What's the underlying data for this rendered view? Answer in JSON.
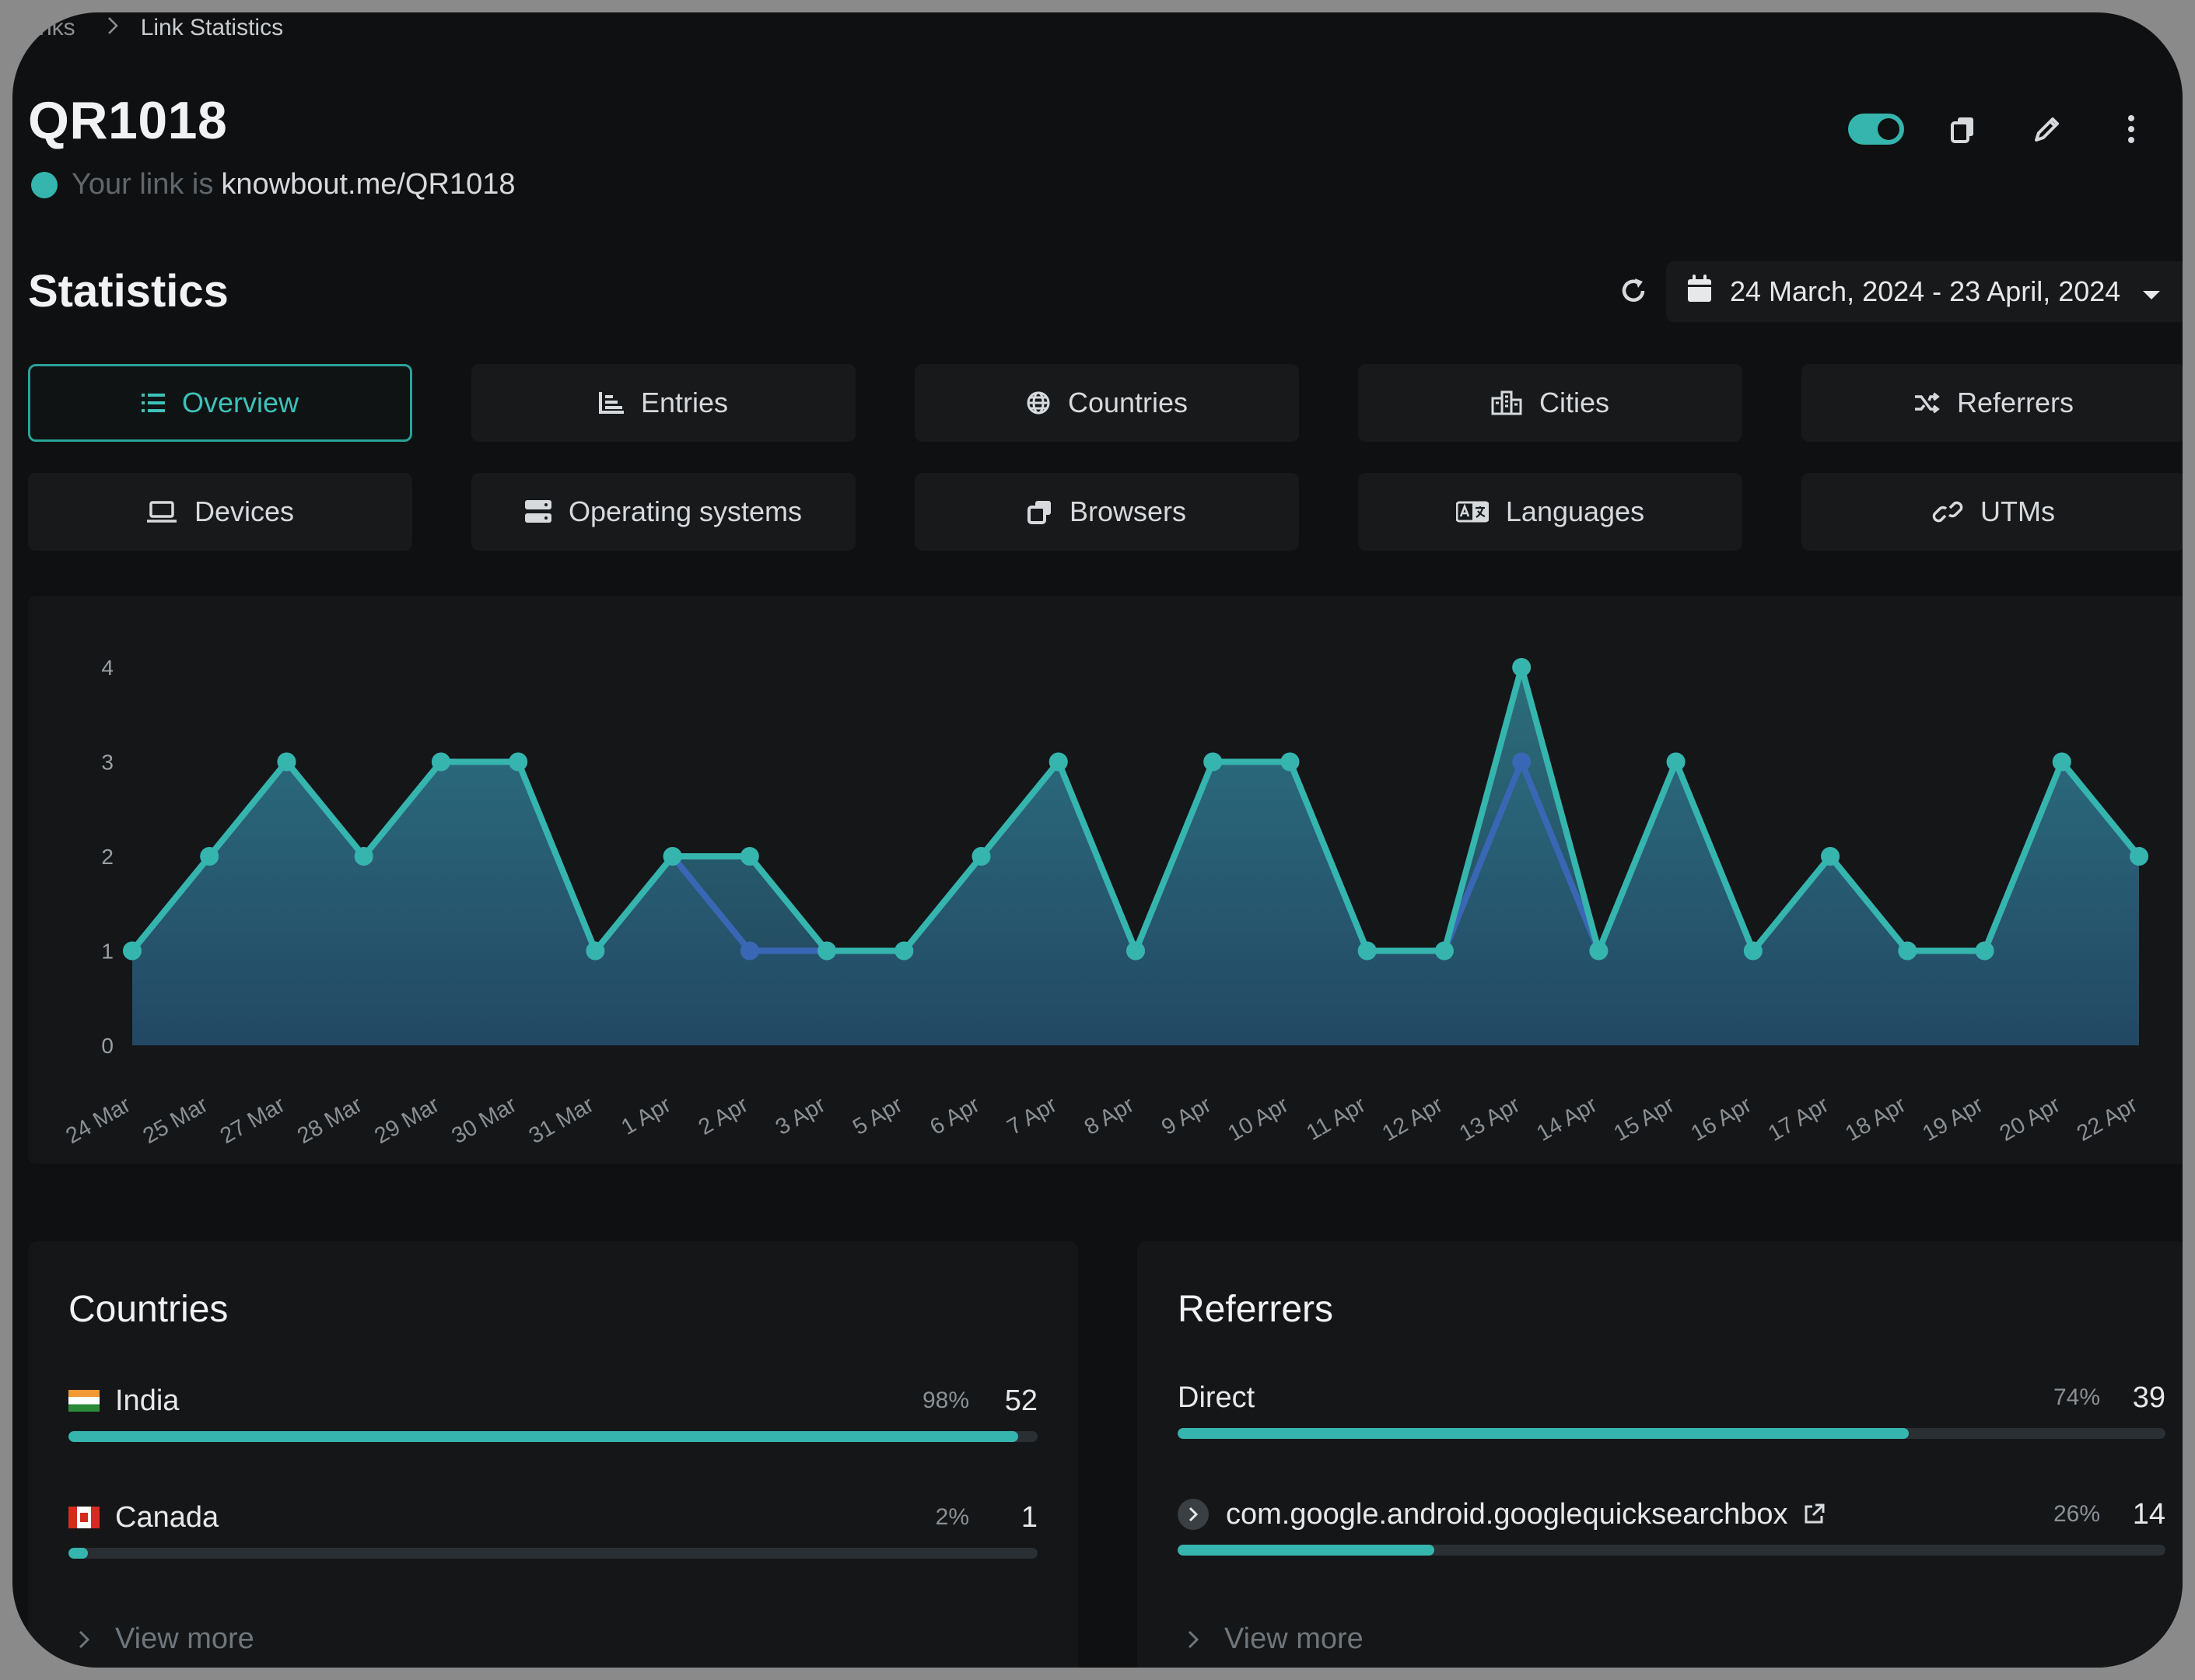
{
  "breadcrumb": {
    "prev": "nks",
    "current": "Link Statistics"
  },
  "page": {
    "title": "QR1018",
    "link_prefix": "Your link is",
    "link_url": "knowbout.me/QR1018",
    "status_color": "#35b5ad"
  },
  "header_actions": {
    "toggle_on": true,
    "icons": [
      "copy-icon",
      "pencil-icon",
      "more-vertical-icon"
    ]
  },
  "statistics": {
    "title": "Statistics",
    "date_range": "24 March, 2024 - 23 April, 2024"
  },
  "tabs": [
    {
      "label": "Overview",
      "icon": "list-icon",
      "active": true
    },
    {
      "label": "Entries",
      "icon": "chart-bar-icon",
      "active": false
    },
    {
      "label": "Countries",
      "icon": "globe-icon",
      "active": false
    },
    {
      "label": "Cities",
      "icon": "city-icon",
      "active": false
    },
    {
      "label": "Referrers",
      "icon": "shuffle-icon",
      "active": false
    },
    {
      "label": "Devices",
      "icon": "laptop-icon",
      "active": false
    },
    {
      "label": "Operating systems",
      "icon": "server-icon",
      "active": false
    },
    {
      "label": "Browsers",
      "icon": "windows-icon",
      "active": false
    },
    {
      "label": "Languages",
      "icon": "language-icon",
      "active": false
    },
    {
      "label": "UTMs",
      "icon": "link-icon",
      "active": false
    }
  ],
  "chart_data": {
    "type": "area",
    "categories": [
      "24 Mar",
      "25 Mar",
      "27 Mar",
      "28 Mar",
      "29 Mar",
      "30 Mar",
      "31 Mar",
      "1 Apr",
      "2 Apr",
      "3 Apr",
      "5 Apr",
      "6 Apr",
      "7 Apr",
      "8 Apr",
      "9 Apr",
      "10 Apr",
      "11 Apr",
      "12 Apr",
      "13 Apr",
      "14 Apr",
      "15 Apr",
      "16 Apr",
      "17 Apr",
      "18 Apr",
      "19 Apr",
      "20 Apr",
      "22 Apr"
    ],
    "series": [
      {
        "values": [
          1,
          2,
          3,
          2,
          3,
          3,
          1,
          2,
          2,
          1,
          1,
          2,
          3,
          1,
          3,
          3,
          1,
          1,
          4,
          1,
          3,
          1,
          2,
          1,
          1,
          3,
          2
        ]
      },
      {
        "values": [
          1,
          2,
          3,
          2,
          3,
          3,
          1,
          2,
          1,
          1,
          1,
          2,
          3,
          1,
          3,
          3,
          1,
          1,
          3,
          1,
          3,
          1,
          2,
          1,
          1,
          3,
          2
        ]
      }
    ],
    "colors": [
      "#35b5ad",
      "#3a67b5"
    ],
    "yticks": [
      0,
      1,
      2,
      3,
      4
    ],
    "ylim": [
      0,
      4
    ],
    "grid": false
  },
  "countries": {
    "title": "Countries",
    "rows": [
      {
        "label": "India",
        "flag": "india-flag-icon",
        "pct": "98%",
        "count": "52",
        "fraction": 0.98
      },
      {
        "label": "Canada",
        "flag": "canada-flag-icon",
        "pct": "2%",
        "count": "1",
        "fraction": 0.02
      }
    ],
    "view_more": "View more"
  },
  "referrers": {
    "title": "Referrers",
    "rows": [
      {
        "label": "Direct",
        "pct": "74%",
        "count": "39",
        "fraction": 0.74
      },
      {
        "label": "com.google.android.googlequicksearchbox",
        "pct": "26%",
        "count": "14",
        "fraction": 0.26,
        "external": true
      }
    ],
    "view_more": "View more"
  }
}
